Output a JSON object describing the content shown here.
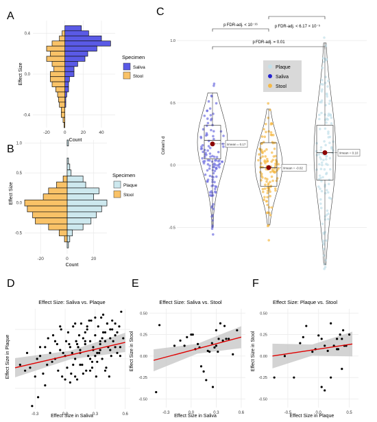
{
  "panel_letters": {
    "A": "A",
    "B": "B",
    "C": "C",
    "D": "D",
    "E": "E",
    "F": "F"
  },
  "colors": {
    "saliva": "#5a5ae6",
    "stool": "#f9c267",
    "plaque": "#cde8ee",
    "saliva_point": "#7070e0",
    "stool_point": "#f5b946",
    "plaque_point": "#c2e0ea",
    "mean": "#8b0000",
    "fit": "#e00000",
    "ci": "#c8c8c8",
    "grid": "#ebebeb",
    "legend_bg": "#d9d9d9"
  },
  "panelA": {
    "ylabel": "Effect Size",
    "xlabel": "Count",
    "legend_title": "Specimen",
    "legend": [
      "Saliva",
      "Stool"
    ],
    "xticks": [
      "-20",
      "0",
      "20",
      "40"
    ],
    "yticks": [
      "0.4",
      "0.0",
      "-0.4"
    ]
  },
  "panelB": {
    "ylabel": "Effect Size",
    "xlabel": "Count",
    "legend_title": "Specimen",
    "legend": [
      "Plaque",
      "Stool"
    ],
    "xticks": [
      "-20",
      "0",
      "20"
    ],
    "yticks": [
      "1.0",
      "0.5",
      "0.0",
      "-0.5"
    ]
  },
  "panelC": {
    "ylabel": "Cohen's d",
    "yticks": [
      "1.0",
      "0.5",
      "0.0",
      "-0.5"
    ],
    "legend": [
      "Plaque",
      "Saliva",
      "Stool"
    ],
    "bracket1": "p FDR-adj. < 10⁻¹⁶",
    "bracket2": "p FDR-adj. < 6.17 × 10⁻⁵",
    "bracket3": "p FDR-adj. = 0.01",
    "mean_saliva": "x̄mean = 0.17",
    "mean_stool": "x̄mean = -0.02",
    "mean_plaque": "x̄mean = 0.10"
  },
  "panelD": {
    "title": "Effect Size: Saliva vs. Plaque",
    "xlabel": "Effect Size in Saliva",
    "ylabel": "Effect Size in Plaque",
    "xticks": [
      "-0.3",
      "0.0",
      "0.3",
      "0.6"
    ]
  },
  "panelE": {
    "title": "Effect Size: Saliva vs. Stool",
    "xlabel": "Effect Size in Saliva",
    "ylabel": "Effect Size in Stool",
    "xticks": [
      "-0.3",
      "0.0",
      "0.3",
      "0.6"
    ],
    "yticks": [
      "0.50",
      "0.25",
      "0.00",
      "-0.25",
      "-0.50"
    ]
  },
  "panelF": {
    "title": "Effect Size: Plaque vs. Stool",
    "xlabel": "Effect Size in Plaque",
    "ylabel": "Effect Size in Stool",
    "xticks": [
      "-0.5",
      "0.0",
      "0.5"
    ],
    "yticks": [
      "0.50",
      "0.25",
      "0.00",
      "-0.25",
      "-0.50"
    ]
  },
  "chart_data": [
    {
      "type": "bar",
      "panel": "A",
      "orientation": "horizontal-mirrored",
      "bins": [
        0.5,
        0.45,
        0.4,
        0.35,
        0.3,
        0.25,
        0.2,
        0.15,
        0.1,
        0.05,
        0.0,
        -0.05,
        -0.1,
        -0.15,
        -0.2,
        -0.25,
        -0.3,
        -0.35,
        -0.4,
        -0.45,
        -0.5
      ],
      "series": [
        {
          "name": "Saliva",
          "values": [
            0,
            18,
            26,
            40,
            50,
            35,
            25,
            22,
            14,
            10,
            10,
            5,
            4,
            4,
            2,
            1,
            1,
            0,
            0,
            0,
            0
          ]
        },
        {
          "name": "Stool",
          "values": [
            0,
            0,
            3,
            6,
            14,
            20,
            16,
            20,
            14,
            12,
            16,
            16,
            14,
            10,
            8,
            7,
            6,
            4,
            4,
            2,
            1
          ]
        }
      ],
      "xlim": [
        -35,
        55
      ]
    },
    {
      "type": "bar",
      "panel": "B",
      "orientation": "horizontal-mirrored",
      "bins": [
        1.0,
        0.9,
        0.8,
        0.7,
        0.6,
        0.5,
        0.4,
        0.3,
        0.2,
        0.1,
        0.0,
        -0.1,
        -0.2,
        -0.3,
        -0.4,
        -0.5,
        -0.6,
        -0.7,
        -0.8
      ],
      "series": [
        {
          "name": "Plaque",
          "values": [
            1,
            0,
            0,
            1,
            2,
            3,
            12,
            14,
            24,
            20,
            30,
            26,
            22,
            18,
            12,
            4,
            2,
            1,
            0
          ]
        },
        {
          "name": "Stool",
          "values": [
            0,
            0,
            0,
            0,
            0,
            0,
            3,
            8,
            14,
            18,
            32,
            30,
            26,
            24,
            14,
            6,
            2,
            0,
            0
          ]
        }
      ],
      "xlim": [
        -32,
        30
      ]
    },
    {
      "type": "scatter",
      "panel": "C",
      "subtype": "violin-box",
      "categories": [
        "Saliva",
        "Stool",
        "Plaque"
      ],
      "means": [
        0.17,
        -0.02,
        0.1
      ],
      "medians": [
        0.2,
        -0.02,
        0.1
      ],
      "quartiles": [
        [
          0.05,
          0.32
        ],
        [
          -0.17,
          0.18
        ],
        [
          -0.12,
          0.32
        ]
      ],
      "ranges": [
        [
          -0.5,
          0.58
        ],
        [
          -0.48,
          0.45
        ],
        [
          -0.8,
          0.98
        ]
      ],
      "ylim": [
        -0.85,
        1.05
      ]
    },
    {
      "type": "scatter",
      "panel": "D",
      "title": "Effect Size: Saliva vs. Plaque",
      "xlabel": "Effect Size in Saliva",
      "ylabel": "Effect Size in Plaque",
      "xlim": [
        -0.5,
        0.65
      ],
      "ylim": [
        -0.85,
        0.85
      ],
      "fit": {
        "x": [
          -0.5,
          0.6
        ],
        "y": [
          -0.15,
          0.28
        ]
      },
      "x": [
        -0.45,
        -0.4,
        -0.38,
        -0.35,
        -0.33,
        -0.3,
        -0.28,
        -0.27,
        -0.25,
        -0.22,
        -0.2,
        -0.18,
        -0.17,
        -0.15,
        -0.13,
        -0.12,
        -0.1,
        -0.08,
        -0.07,
        -0.05,
        -0.04,
        -0.03,
        -0.02,
        0.0,
        0.01,
        0.02,
        0.03,
        0.05,
        0.06,
        0.07,
        0.08,
        0.1,
        0.11,
        0.12,
        0.13,
        0.15,
        0.16,
        0.17,
        0.18,
        0.2,
        0.21,
        0.22,
        0.23,
        0.25,
        0.26,
        0.27,
        0.28,
        0.3,
        0.31,
        0.32,
        0.33,
        0.35,
        0.36,
        0.37,
        0.38,
        0.4,
        0.41,
        0.42,
        0.43,
        0.45,
        0.46,
        0.47,
        0.48,
        0.5,
        0.52,
        0.54,
        0.55,
        0.56,
        0.58,
        0.05,
        0.1,
        0.15,
        0.2,
        0.25,
        0.3,
        0.35,
        0.4,
        0.45,
        0.5,
        -0.2,
        -0.1,
        0.0,
        0.12,
        0.22,
        0.32,
        0.42,
        0.52,
        0.18,
        0.28,
        0.38,
        0.08,
        -0.05,
        0.24,
        0.34,
        0.44,
        0.14,
        0.04,
        -0.25,
        0.27,
        0.37,
        0.47,
        0.2,
        0.1,
        0.3,
        0.4,
        0.5,
        0.15,
        0.25,
        0.35,
        0.45,
        0.55
      ],
      "y": [
        -0.1,
        -0.2,
        0.1,
        -0.15,
        -0.8,
        -0.3,
        0.0,
        -0.65,
        0.05,
        -0.25,
        0.2,
        -0.1,
        0.35,
        0.1,
        -0.05,
        0.4,
        0.0,
        0.25,
        -0.2,
        0.15,
        0.5,
        -0.3,
        0.1,
        0.05,
        0.3,
        -0.15,
        0.45,
        0.2,
        -0.25,
        0.1,
        0.55,
        0.0,
        0.3,
        -0.35,
        0.2,
        0.15,
        0.6,
        -0.1,
        0.35,
        0.25,
        -0.2,
        0.5,
        0.05,
        0.3,
        0.65,
        -0.05,
        0.2,
        0.4,
        -0.3,
        0.1,
        0.55,
        0.25,
        0.7,
        0.0,
        0.45,
        0.3,
        -0.15,
        0.6,
        0.2,
        0.5,
        0.05,
        0.65,
        0.3,
        0.4,
        0.1,
        0.55,
        0.2,
        0.8,
        0.35,
        -0.4,
        0.6,
        -0.1,
        0.45,
        0.0,
        0.7,
        0.15,
        -0.2,
        0.35,
        0.6,
        -0.45,
        0.3,
        -0.35,
        0.25,
        0.55,
        -0.05,
        0.6,
        0.45,
        -0.25,
        0.15,
        0.75,
        -0.1,
        0.55,
        0.65,
        0.1,
        -0.3,
        0.4,
        0.25,
        0.2,
        -0.15,
        0.35,
        0.5,
        0.3,
        -0.3,
        0.05,
        0.45,
        0.2,
        0.1,
        -0.2,
        0.3,
        0.15,
        0.05
      ]
    },
    {
      "type": "scatter",
      "panel": "E",
      "title": "Effect Size: Saliva vs. Stool",
      "xlabel": "Effect Size in Saliva",
      "ylabel": "Effect Size in Stool",
      "xlim": [
        -0.5,
        0.65
      ],
      "ylim": [
        -0.6,
        0.55
      ],
      "fit": {
        "x": [
          -0.45,
          0.6
        ],
        "y": [
          -0.05,
          0.22
        ]
      },
      "x": [
        -0.42,
        -0.38,
        -0.2,
        -0.13,
        -0.08,
        -0.05,
        0.0,
        0.02,
        0.05,
        0.08,
        0.1,
        0.15,
        0.18,
        0.2,
        0.22,
        0.25,
        0.28,
        0.3,
        0.32,
        0.33,
        0.35,
        0.38,
        0.4,
        0.42,
        0.45,
        0.5,
        0.55,
        0.26,
        0.12,
        0.3
      ],
      "y": [
        -0.42,
        0.36,
        0.12,
        0.18,
        0.12,
        0.22,
        0.25,
        0.25,
        0.08,
        0.14,
        0.1,
        -0.18,
        -0.28,
        0.06,
        0.05,
        0.15,
        0.1,
        0.3,
        0.05,
        0.2,
        0.38,
        0.18,
        0.35,
        0.2,
        0.2,
        0.02,
        0.3,
        -0.36,
        -0.12,
        0.12
      ]
    },
    {
      "type": "scatter",
      "panel": "F",
      "title": "Effect Size: Plaque vs. Stool",
      "xlabel": "Effect Size in Plaque",
      "ylabel": "Effect Size in Stool",
      "xlim": [
        -0.8,
        0.65
      ],
      "ylim": [
        -0.6,
        0.55
      ],
      "fit": {
        "x": [
          -0.75,
          0.55
        ],
        "y": [
          0.0,
          0.14
        ]
      },
      "x": [
        -0.72,
        -0.55,
        -0.4,
        -0.3,
        -0.25,
        -0.2,
        -0.1,
        -0.05,
        0.0,
        0.05,
        0.1,
        0.15,
        0.2,
        0.25,
        0.3,
        0.32,
        0.35,
        0.38,
        0.4,
        0.42,
        0.45,
        0.5,
        0.05,
        0.1,
        0.2,
        0.3,
        0.38
      ],
      "y": [
        -0.25,
        0.0,
        -0.25,
        0.15,
        0.22,
        0.35,
        0.05,
        0.08,
        0.24,
        0.2,
        0.12,
        0.06,
        0.38,
        0.12,
        0.2,
        0.08,
        0.25,
        -0.15,
        0.3,
        0.12,
        0.12,
        0.25,
        -0.36,
        -0.4,
        -0.25,
        0.08,
        0.2
      ]
    }
  ]
}
